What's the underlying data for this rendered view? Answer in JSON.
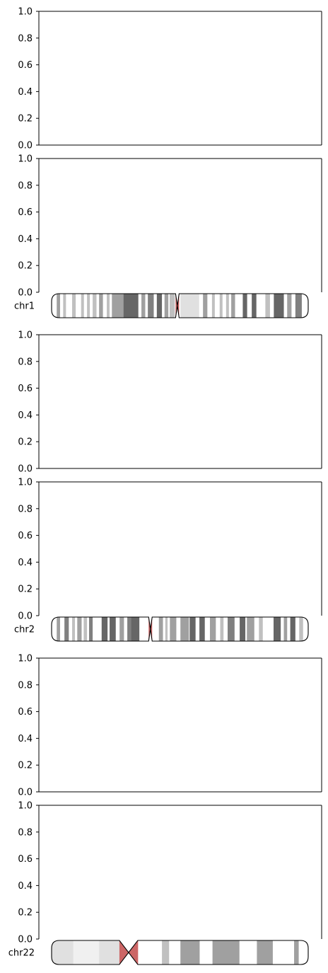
{
  "chart_data": {
    "type": "ideogram",
    "panels": [
      {
        "yticks": [
          "0.0",
          "0.2",
          "0.4",
          "0.6",
          "0.8",
          "1.0"
        ],
        "ylim": [
          0,
          1
        ],
        "chromosome": null
      },
      {
        "yticks": [
          "0.0",
          "0.2",
          "0.4",
          "0.6",
          "0.8",
          "1.0"
        ],
        "ylim": [
          0,
          1
        ],
        "chromosome": "chr1"
      },
      {
        "yticks": [
          "0.0",
          "0.2",
          "0.4",
          "0.6",
          "0.8",
          "1.0"
        ],
        "ylim": [
          0,
          1
        ],
        "chromosome": null
      },
      {
        "yticks": [
          "0.0",
          "0.2",
          "0.4",
          "0.6",
          "0.8",
          "1.0"
        ],
        "ylim": [
          0,
          1
        ],
        "chromosome": "chr2"
      },
      {
        "yticks": [
          "0.0",
          "0.2",
          "0.4",
          "0.6",
          "0.8",
          "1.0"
        ],
        "ylim": [
          0,
          1
        ],
        "chromosome": null
      },
      {
        "yticks": [
          "0.0",
          "0.2",
          "0.4",
          "0.6",
          "0.8",
          "1.0"
        ],
        "ylim": [
          0,
          1
        ],
        "chromosome": "chr22"
      }
    ],
    "chromosomes": {
      "chr1": {
        "label": "chr1",
        "centromere": 0.49,
        "bands": [
          [
            0.02,
            0.033,
            "#a0a0a0"
          ],
          [
            0.045,
            0.056,
            "#c0c0c0"
          ],
          [
            0.08,
            0.094,
            "#c0c0c0"
          ],
          [
            0.115,
            0.126,
            "#c0c0c0"
          ],
          [
            0.138,
            0.149,
            "#c0c0c0"
          ],
          [
            0.16,
            0.175,
            "#c0c0c0"
          ],
          [
            0.185,
            0.2,
            "#a0a0a0"
          ],
          [
            0.215,
            0.226,
            "#c0c0c0"
          ],
          [
            0.235,
            0.28,
            "#a0a0a0"
          ],
          [
            0.28,
            0.338,
            "#666666"
          ],
          [
            0.35,
            0.365,
            "#a0a0a0"
          ],
          [
            0.375,
            0.398,
            "#808080"
          ],
          [
            0.41,
            0.43,
            "#666666"
          ],
          [
            0.44,
            0.455,
            "#a0a0a0"
          ],
          [
            0.46,
            0.48,
            "#c0c0c0"
          ],
          [
            0.502,
            0.575,
            "#e0e0e0"
          ],
          [
            0.59,
            0.607,
            "#a0a0a0"
          ],
          [
            0.625,
            0.636,
            "#c0c0c0"
          ],
          [
            0.655,
            0.666,
            "#c0c0c0"
          ],
          [
            0.68,
            0.691,
            "#c0c0c0"
          ],
          [
            0.7,
            0.715,
            "#a0a0a0"
          ],
          [
            0.745,
            0.762,
            "#666666"
          ],
          [
            0.78,
            0.798,
            "#666666"
          ],
          [
            0.833,
            0.851,
            "#c0c0c0"
          ],
          [
            0.866,
            0.905,
            "#666666"
          ],
          [
            0.918,
            0.935,
            "#a0a0a0"
          ],
          [
            0.95,
            0.975,
            "#808080"
          ]
        ]
      },
      "chr2": {
        "label": "chr2",
        "centromere": 0.385,
        "bands": [
          [
            0.02,
            0.033,
            "#a0a0a0"
          ],
          [
            0.05,
            0.067,
            "#808080"
          ],
          [
            0.08,
            0.091,
            "#c0c0c0"
          ],
          [
            0.1,
            0.117,
            "#a0a0a0"
          ],
          [
            0.125,
            0.138,
            "#c0c0c0"
          ],
          [
            0.146,
            0.16,
            "#808080"
          ],
          [
            0.195,
            0.218,
            "#666666"
          ],
          [
            0.226,
            0.25,
            "#666666"
          ],
          [
            0.265,
            0.282,
            "#a0a0a0"
          ],
          [
            0.295,
            0.31,
            "#808080"
          ],
          [
            0.31,
            0.342,
            "#666666"
          ],
          [
            0.418,
            0.434,
            "#a0a0a0"
          ],
          [
            0.443,
            0.452,
            "#c0c0c0"
          ],
          [
            0.461,
            0.486,
            "#a0a0a0"
          ],
          [
            0.502,
            0.535,
            "#a0a0a0"
          ],
          [
            0.538,
            0.561,
            "#666666"
          ],
          [
            0.576,
            0.597,
            "#666666"
          ],
          [
            0.617,
            0.64,
            "#a0a0a0"
          ],
          [
            0.657,
            0.67,
            "#c0c0c0"
          ],
          [
            0.686,
            0.713,
            "#808080"
          ],
          [
            0.733,
            0.755,
            "#666666"
          ],
          [
            0.761,
            0.79,
            "#a0a0a0"
          ],
          [
            0.808,
            0.823,
            "#c0c0c0"
          ],
          [
            0.865,
            0.893,
            "#666666"
          ],
          [
            0.905,
            0.918,
            "#a0a0a0"
          ],
          [
            0.93,
            0.95,
            "#666666"
          ],
          [
            0.965,
            0.98,
            "#c0c0c0"
          ]
        ]
      },
      "chr22": {
        "label": "chr22",
        "centromere": 0.3,
        "bands": [
          [
            0.0,
            0.085,
            "#e0e0e0"
          ],
          [
            0.085,
            0.185,
            "#f0f0f0"
          ],
          [
            0.185,
            0.27,
            "#e0e0e0"
          ],
          [
            0.27,
            0.3,
            "#cc6666"
          ],
          [
            0.3,
            0.337,
            "#cc6666"
          ],
          [
            0.43,
            0.458,
            "#c0c0c0"
          ],
          [
            0.502,
            0.577,
            "#a0a0a0"
          ],
          [
            0.627,
            0.732,
            "#a0a0a0"
          ],
          [
            0.8,
            0.862,
            "#a0a0a0"
          ],
          [
            0.945,
            0.963,
            "#a0a0a0"
          ]
        ]
      }
    },
    "colors": {
      "centromere": "#cc6666",
      "axis": "#000000"
    }
  }
}
